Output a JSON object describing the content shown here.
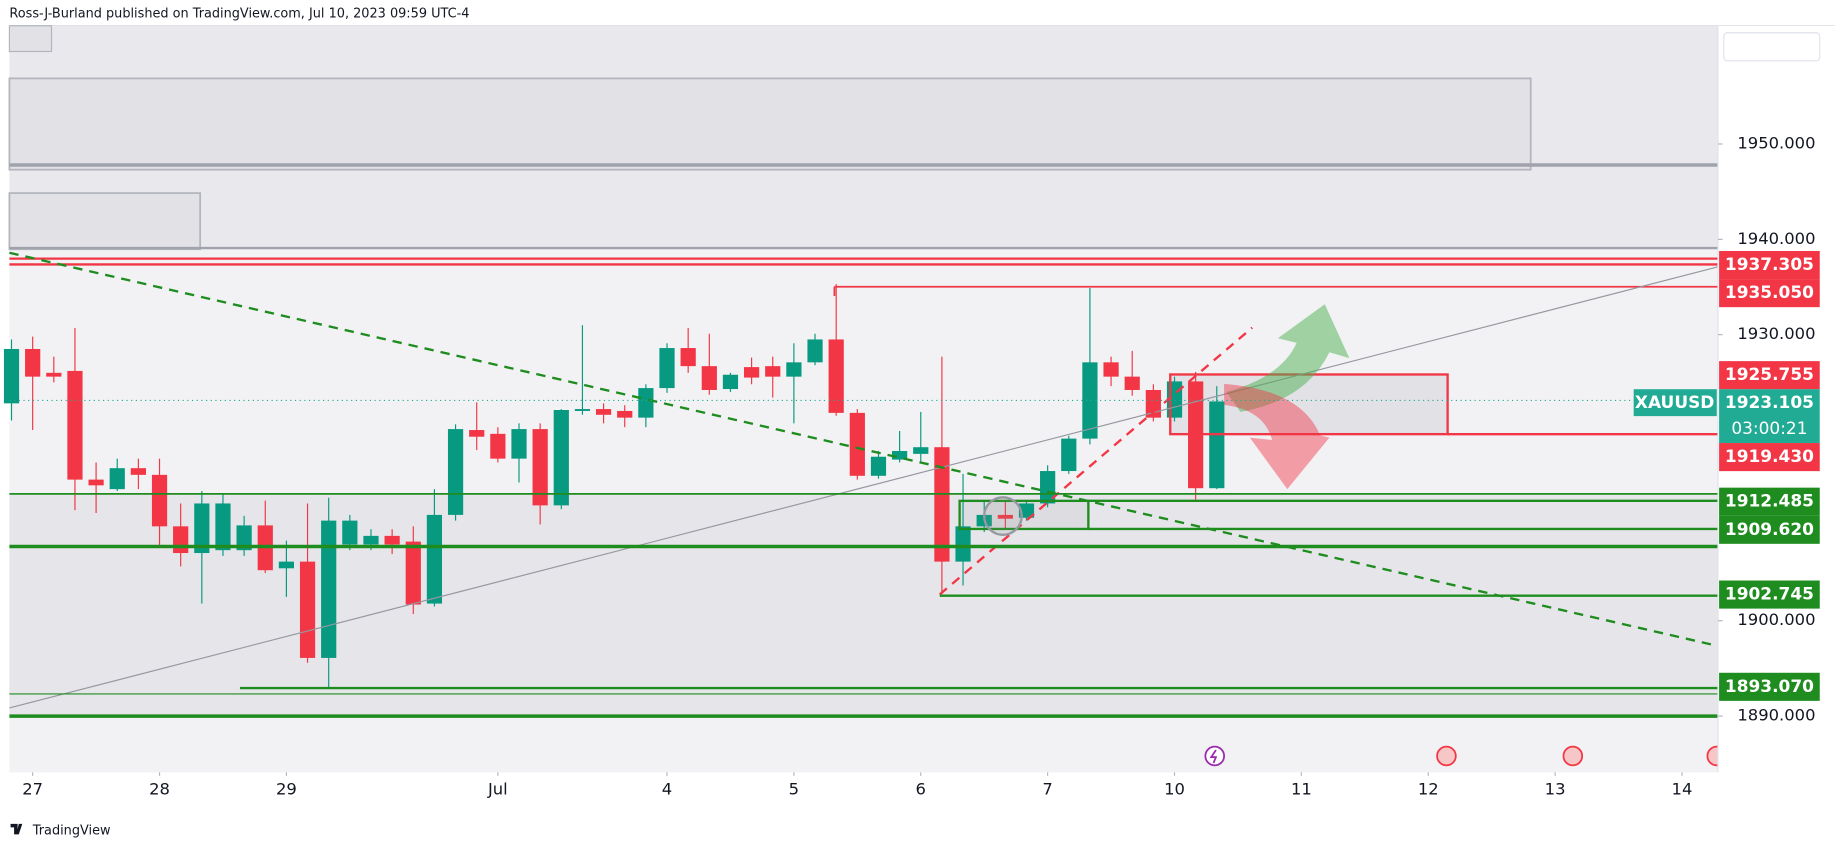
{
  "header": "Ross-J-Burland published on TradingView.com, Jul 10, 2023 09:59 UTC-4",
  "footer_brand": "TradingView",
  "chart_data": {
    "type": "candlestick",
    "up_color": "#089981",
    "down_color": "#f23645",
    "grid": false,
    "xlim": [
      -0.1,
      80.7
    ],
    "ylim": [
      1884.1,
      1962.4
    ],
    "xticks": [
      {
        "value": 1,
        "label": "27"
      },
      {
        "value": 7,
        "label": "28"
      },
      {
        "value": 13,
        "label": "29"
      },
      {
        "value": 23,
        "label": "Jul"
      },
      {
        "value": 31,
        "label": "4"
      },
      {
        "value": 37,
        "label": "5"
      },
      {
        "value": 43,
        "label": "6"
      },
      {
        "value": 49,
        "label": "7"
      },
      {
        "value": 55,
        "label": "10"
      },
      {
        "value": 61,
        "label": "11"
      },
      {
        "value": 67,
        "label": "12"
      },
      {
        "value": 73,
        "label": "13"
      },
      {
        "value": 79,
        "label": "14"
      }
    ],
    "yticks": [
      {
        "value": 1890,
        "label": "1890.000"
      },
      {
        "value": 1900,
        "label": "1900.000"
      },
      {
        "value": 1930,
        "label": "1930.000"
      },
      {
        "value": 1940,
        "label": "1940.000"
      },
      {
        "value": 1950,
        "label": "1950.000"
      }
    ],
    "open": [
      1922.8,
      1928.5,
      1926,
      1926.2,
      1914.8,
      1913.8,
      1916,
      1915.3,
      1909.9,
      1907.1,
      1907.4,
      1907.4,
      1910,
      1905.5,
      1906.2,
      1896.1,
      1908,
      1908,
      1908.9,
      1908.3,
      1901.8,
      1911.1,
      1920,
      1919.6,
      1917,
      1920.1,
      1912.1,
      1922,
      1922.2,
      1922,
      1921.3,
      1924.4,
      1928.6,
      1926.7,
      1924.3,
      1926.6,
      1926.7,
      1925.6,
      1927.1,
      1929.5,
      1921.8,
      1915.2,
      1916.9,
      1917.5,
      1918.2,
      1906.2,
      1909.9,
      1911.1,
      1910.8,
      1912.3,
      1915.7,
      1919.1,
      1927.1,
      1925.6,
      1924.2,
      1921.3,
      1925.1,
      1913.9
    ],
    "high": [
      1929.5,
      1929.8,
      1927.7,
      1930.7,
      1916.6,
      1917,
      1917,
      1917,
      1912.3,
      1913.6,
      1913.3,
      1911,
      1912.6,
      1908.4,
      1912.3,
      1912.9,
      1911.1,
      1909.6,
      1909.6,
      1909.9,
      1913.8,
      1920.6,
      1922.9,
      1920.3,
      1920.7,
      1920.7,
      1922.2,
      1931,
      1922.8,
      1922.6,
      1924.8,
      1929.1,
      1930.7,
      1930.1,
      1926,
      1927.6,
      1927.7,
      1929.1,
      1930.1,
      1935.3,
      1922.2,
      1917.8,
      1919.9,
      1921.9,
      1927.7,
      1915.4,
      1912.6,
      1912.6,
      1912.6,
      1916.3,
      1919.4,
      1934.9,
      1927.7,
      1928.3,
      1924.8,
      1925.6,
      1926.1,
      1924.6
    ],
    "low": [
      1921,
      1920,
      1925,
      1911.6,
      1911.3,
      1913.6,
      1913.8,
      1907.7,
      1905.7,
      1901.8,
      1906.8,
      1906.8,
      1905,
      1902.5,
      1895.6,
      1892.9,
      1907.4,
      1907.4,
      1907,
      1900.7,
      1901.5,
      1910.5,
      1917.9,
      1916.6,
      1914.5,
      1910.1,
      1911.7,
      1921.6,
      1920.7,
      1920.3,
      1920.3,
      1923.9,
      1926,
      1923.7,
      1924,
      1924.8,
      1923.4,
      1920.7,
      1926.8,
      1921.5,
      1914.8,
      1914.9,
      1916.6,
      1916.6,
      1902.8,
      1903.7,
      1909.3,
      1909.6,
      1910.5,
      1911.9,
      1915.4,
      1918.5,
      1924.6,
      1923.6,
      1920.9,
      1920.9,
      1912.7,
      1913.8
    ],
    "close": [
      1928.5,
      1925.6,
      1925.6,
      1914.8,
      1914.2,
      1916,
      1915.3,
      1909.9,
      1907.1,
      1912.3,
      1912.3,
      1910,
      1905.3,
      1906.2,
      1896.1,
      1910.5,
      1910.5,
      1908.9,
      1908,
      1901.7,
      1911.1,
      1920.1,
      1919.3,
      1917,
      1920.1,
      1912.1,
      1922.1,
      1922.2,
      1921.6,
      1921.3,
      1924.4,
      1928.6,
      1926.7,
      1924.2,
      1925.8,
      1925.5,
      1925.6,
      1927.1,
      1929.5,
      1921.8,
      1915.2,
      1917.2,
      1917.8,
      1918.2,
      1906.2,
      1909.9,
      1911.1,
      1910.7,
      1912.3,
      1915.7,
      1919.1,
      1927.1,
      1925.6,
      1924.2,
      1921.3,
      1925.1,
      1913.9,
      1923
    ],
    "levels": [
      {
        "value": 1937.305,
        "label": "1937.305",
        "color": "#f23645"
      },
      {
        "value": 1935.05,
        "label": "1935.050",
        "color": "#f23645"
      },
      {
        "value": 1925.755,
        "label": "1925.755",
        "color": "#f23645"
      },
      {
        "value": 1923.105,
        "label": "1923.105",
        "color": "#22ab94",
        "symbol": "XAUUSD",
        "countdown": "03:00:21"
      },
      {
        "value": 1919.43,
        "label": "1919.430",
        "color": "#f23645"
      },
      {
        "value": 1912.485,
        "label": "1912.485",
        "color": "#1e8c1e"
      },
      {
        "value": 1909.62,
        "label": "1909.620",
        "color": "#1e8c1e"
      },
      {
        "value": 1902.745,
        "label": "1902.745",
        "color": "#1e8c1e"
      },
      {
        "value": 1893.07,
        "label": "1893.070",
        "color": "#1e8c1e"
      }
    ]
  }
}
